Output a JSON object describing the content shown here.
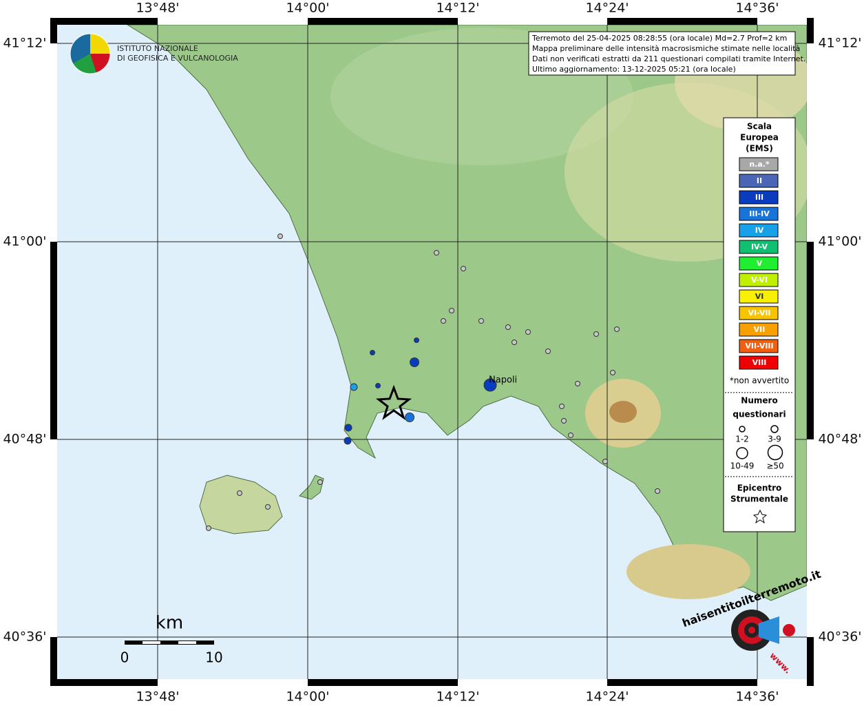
{
  "map": {
    "longitude_labels": [
      "13°48'",
      "14°00'",
      "14°12'",
      "14°24'",
      "14°36'"
    ],
    "latitude_labels": [
      "41°12'",
      "41°00'",
      "40°48'",
      "40°36'"
    ],
    "logo": {
      "line1": "ISTITUTO NAZIONALE",
      "line2": "DI GEOFISICA E VULCANOLOGIA"
    },
    "info": [
      "Terremoto del 25-04-2025 08:28:55 (ora locale) Md=2.7 Prof=2 km",
      "Mappa preliminare delle intensità macrosismiche stimate nelle località",
      "Dati non verificati estratti da 211 questionari compilati tramite Internet.",
      "Ultimo aggiornamento: 13-12-2025 05:21 (ora locale)"
    ],
    "place": "Napoli",
    "legend": {
      "title": [
        "Scala",
        "Europea",
        "(EMS)"
      ],
      "items": [
        {
          "label": "n.a.*",
          "color": "#a8a8a8"
        },
        {
          "label": "II",
          "color": "#4a66b4"
        },
        {
          "label": "III",
          "color": "#0a3cc0"
        },
        {
          "label": "III-IV",
          "color": "#1874d8"
        },
        {
          "label": "IV",
          "color": "#18a0e8"
        },
        {
          "label": "IV-V",
          "color": "#10c070"
        },
        {
          "label": "V",
          "color": "#20ee30"
        },
        {
          "label": "V-VI",
          "color": "#c0f000"
        },
        {
          "label": "VI",
          "color": "#f8f000"
        },
        {
          "label": "VI-VII",
          "color": "#f8c400"
        },
        {
          "label": "VII",
          "color": "#f8a000"
        },
        {
          "label": "VII-VIII",
          "color": "#f06010"
        },
        {
          "label": "VIII",
          "color": "#f00000"
        }
      ],
      "note": "*non avvertito",
      "count_title": [
        "Numero",
        "questionari"
      ],
      "count_sizes": [
        "1-2",
        "3-9",
        "10-49",
        "≥50"
      ],
      "epicenter_title": [
        "Epicentro",
        "Strumentale"
      ]
    },
    "scale": {
      "unit": "km",
      "start": "0",
      "end": "10"
    },
    "badge": {
      "text": "haisentitoilterremoto.it",
      "www": "www."
    }
  }
}
